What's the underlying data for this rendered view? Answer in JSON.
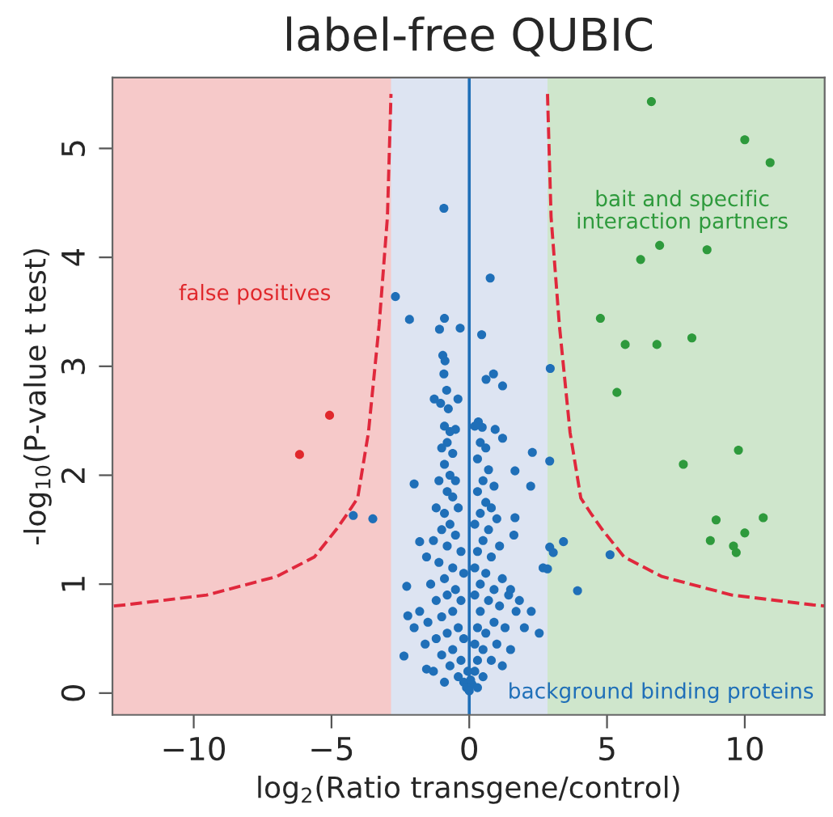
{
  "chart_data": {
    "type": "scatter",
    "title": "label-free QUBIC",
    "xlabel": "log$_{2}$(Ratio transgene/control)",
    "ylabel": "-log$_{10}$(P-value t test)",
    "xlim": [
      -12.95,
      12.9
    ],
    "ylim": [
      -0.2,
      5.65
    ],
    "xticks": [
      {
        "value": -10,
        "label": "−10"
      },
      {
        "value": -5,
        "label": "−5"
      },
      0,
      5,
      10
    ],
    "yticks": [
      0,
      1,
      2,
      3,
      4,
      5
    ],
    "grid": false,
    "legend": false,
    "marker": "circle",
    "bands": [
      {
        "axis": "x",
        "from": -12.95,
        "to": -2.84,
        "color": "#f6c9c9"
      },
      {
        "axis": "x",
        "from": 2.84,
        "to": 12.9,
        "color": "#cfe6cc"
      }
    ],
    "ref_lines": [
      {
        "axis": "x",
        "value": 0,
        "color": "#1f6fb8",
        "line_style": "solid"
      }
    ],
    "annotations": [
      "false positives",
      "bait and specific\ninteraction partners",
      "background binding proteins"
    ],
    "series": [
      {
        "color": "#1f6fb8",
        "x": [
          -0.92,
          -2.68,
          0.76,
          -2.17,
          -0.9,
          -0.33,
          -1.08,
          0.45,
          2.94,
          -0.96,
          -0.88,
          -0.92,
          0.88,
          0.61,
          1.21,
          -0.82,
          -1.27,
          -0.41,
          -1.04,
          -0.76,
          0.33,
          0.47,
          0.94,
          1.21,
          2.29,
          2.92,
          1.66,
          2.23,
          -2.0,
          -4.21,
          -3.5,
          1.66,
          1.62,
          3.42,
          2.92,
          3.05,
          5.11,
          -1.8,
          -1.55,
          2.68,
          2.84,
          3.93,
          -2.27,
          -2.23,
          -2.37,
          -1.55,
          2.54,
          1.43,
          1.82,
          2.25,
          -0.9,
          -0.7,
          -0.5,
          -0.8,
          -1.0,
          -0.6,
          -0.9,
          -0.7,
          -1.1,
          -0.5,
          -0.8,
          -0.6,
          -1.2,
          -0.9,
          -0.4,
          -0.7,
          -1.0,
          -0.5,
          -1.3,
          -0.8,
          -0.3,
          -1.1,
          -0.6,
          -0.2,
          -0.9,
          -1.4,
          -0.5,
          -0.8,
          -1.2,
          -0.3,
          -0.6,
          -1.0,
          -1.5,
          -0.4,
          -0.8,
          -1.2,
          -0.2,
          -0.6,
          -1.0,
          -0.3,
          -0.7,
          -0.4,
          -0.2,
          -0.1,
          -1.8,
          -1.6,
          -2.0,
          -1.3,
          -0.9,
          0.2,
          0.4,
          0.6,
          0.3,
          0.7,
          0.5,
          0.9,
          0.3,
          0.6,
          0.8,
          0.4,
          1.0,
          0.2,
          0.7,
          0.5,
          1.1,
          0.3,
          0.8,
          0.2,
          0.6,
          1.2,
          0.4,
          0.9,
          1.5,
          0.2,
          0.7,
          1.1,
          0.4,
          1.7,
          0.9,
          0.3,
          1.3,
          0.6,
          2.0,
          0.2,
          1.0,
          0.5,
          1.5,
          0.3,
          0.8,
          1.2,
          0.2,
          0.5,
          0.1,
          0.3,
          0.0,
          0.05,
          -0.05
        ],
        "values": [
          4.45,
          3.64,
          3.81,
          3.43,
          3.44,
          3.35,
          3.34,
          3.29,
          2.98,
          3.1,
          3.05,
          2.93,
          2.93,
          2.88,
          2.82,
          2.78,
          2.7,
          2.7,
          2.66,
          2.61,
          2.49,
          2.44,
          2.42,
          2.34,
          2.21,
          2.13,
          2.04,
          1.9,
          1.92,
          1.63,
          1.6,
          1.61,
          1.45,
          1.39,
          1.34,
          1.29,
          1.27,
          1.39,
          1.25,
          1.15,
          1.14,
          0.94,
          0.98,
          0.71,
          0.34,
          0.22,
          0.55,
          0.9,
          0.85,
          0.75,
          2.45,
          2.4,
          2.42,
          2.3,
          2.25,
          2.2,
          2.1,
          2.0,
          1.95,
          1.95,
          1.85,
          1.8,
          1.7,
          1.65,
          1.7,
          1.55,
          1.5,
          1.45,
          1.4,
          1.35,
          1.3,
          1.2,
          1.15,
          1.1,
          1.05,
          1.0,
          0.95,
          0.9,
          0.85,
          0.85,
          0.75,
          0.7,
          0.65,
          0.6,
          0.55,
          0.5,
          0.5,
          0.4,
          0.35,
          0.3,
          0.25,
          0.15,
          0.1,
          0.05,
          0.75,
          0.45,
          0.6,
          0.2,
          0.1,
          2.45,
          2.3,
          2.25,
          2.15,
          2.05,
          1.95,
          1.9,
          1.85,
          1.75,
          1.7,
          1.65,
          1.6,
          1.55,
          1.5,
          1.4,
          1.35,
          1.3,
          1.25,
          1.15,
          1.1,
          1.05,
          1.0,
          0.95,
          0.95,
          0.9,
          0.85,
          0.8,
          0.75,
          0.75,
          0.65,
          0.6,
          0.6,
          0.55,
          0.6,
          0.45,
          0.45,
          0.4,
          0.4,
          0.3,
          0.3,
          0.25,
          0.2,
          0.15,
          0.08,
          0.05,
          0.02,
          0.12,
          0.2
        ]
      },
      {
        "color": "#e0282c",
        "x": [
          -5.07,
          -6.16
        ],
        "values": [
          2.55,
          2.19
        ]
      },
      {
        "color": "#2e9a3c",
        "x": [
          6.61,
          10.0,
          10.92,
          6.22,
          6.91,
          8.63,
          4.76,
          5.66,
          6.81,
          8.08,
          5.36,
          9.77,
          7.77,
          8.96,
          10.67,
          10.0,
          8.75,
          9.59,
          9.69
        ],
        "values": [
          5.43,
          5.08,
          4.87,
          3.98,
          4.11,
          4.07,
          3.44,
          3.2,
          3.2,
          3.26,
          2.76,
          2.23,
          2.1,
          1.59,
          1.61,
          1.47,
          1.4,
          1.35,
          1.29
        ]
      },
      {
        "type": "line",
        "color": "#e0283c",
        "line_style": "dashed",
        "marker": "none",
        "x": [
          -12.9,
          -12.47,
          -9.53,
          -6.99,
          -5.62,
          -4.83,
          -4.44,
          -4.05,
          -3.66,
          -3.27,
          -2.97,
          -2.84
        ],
        "values": [
          0.8,
          0.81,
          0.9,
          1.07,
          1.25,
          1.5,
          1.64,
          1.79,
          2.39,
          3.38,
          4.37,
          5.5
        ]
      },
      {
        "type": "line",
        "color": "#e0283c",
        "line_style": "dashed",
        "marker": "none",
        "x": [
          2.84,
          2.97,
          3.27,
          3.66,
          4.05,
          4.44,
          4.83,
          5.62,
          6.99,
          9.53,
          12.47,
          12.9
        ],
        "values": [
          5.5,
          4.37,
          3.38,
          2.39,
          1.79,
          1.64,
          1.5,
          1.25,
          1.07,
          0.9,
          0.81,
          0.8
        ]
      }
    ]
  }
}
